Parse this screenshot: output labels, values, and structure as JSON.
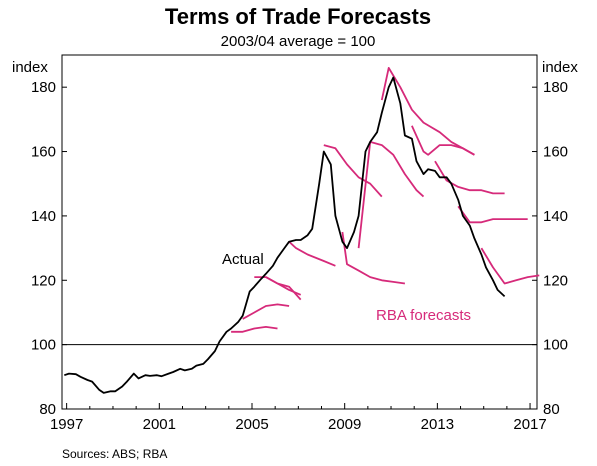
{
  "chart_data": {
    "type": "line",
    "title": "Terms of Trade Forecasts",
    "subtitle": "2003/04 average = 100",
    "y_unit_left": "index",
    "y_unit_right": "index",
    "xlim": [
      1996.8,
      2017.3
    ],
    "ylim": [
      80,
      190
    ],
    "x_ticks": [
      1997,
      2001,
      2005,
      2009,
      2013,
      2017
    ],
    "y_ticks": [
      80,
      100,
      120,
      140,
      160,
      180
    ],
    "reference_line_y": 100,
    "grid": false,
    "source": "Sources:   ABS; RBA",
    "series": [
      {
        "name": "Actual",
        "color": "#000000",
        "x": [
          1996.9,
          1997.1,
          1997.4,
          1997.6,
          1997.9,
          1998.1,
          1998.4,
          1998.6,
          1998.9,
          1999.1,
          1999.4,
          1999.6,
          1999.9,
          2000.1,
          2000.4,
          2000.6,
          2000.9,
          2001.1,
          2001.4,
          2001.6,
          2001.9,
          2002.1,
          2002.4,
          2002.6,
          2002.9,
          2003.1,
          2003.4,
          2003.6,
          2003.9,
          2004.1,
          2004.4,
          2004.6,
          2004.9,
          2005.1,
          2005.4,
          2005.6,
          2005.9,
          2006.1,
          2006.4,
          2006.6,
          2006.9,
          2007.1,
          2007.4,
          2007.6,
          2007.9,
          2008.1,
          2008.4,
          2008.6,
          2008.9,
          2009.1,
          2009.4,
          2009.6,
          2009.9,
          2010.1,
          2010.4,
          2010.6,
          2010.9,
          2011.1,
          2011.4,
          2011.6,
          2011.9,
          2012.1,
          2012.4,
          2012.6,
          2012.9,
          2013.1,
          2013.4,
          2013.6,
          2013.9,
          2014.1,
          2014.4,
          2014.6,
          2014.9,
          2015.1,
          2015.4,
          2015.6,
          2015.9
        ],
        "values": [
          90.5,
          91,
          90.8,
          90,
          89,
          88.5,
          86,
          85,
          85.5,
          85.5,
          87,
          88.5,
          91,
          89.5,
          90.5,
          90.3,
          90.5,
          90.2,
          91,
          91.5,
          92.5,
          92,
          92.5,
          93.5,
          94,
          95.5,
          98,
          101,
          104,
          105,
          107,
          109,
          116.5,
          118,
          120.5,
          122,
          124.5,
          127,
          130,
          132,
          132.5,
          132.5,
          134,
          136,
          150,
          160,
          156,
          140,
          132,
          130,
          135,
          140,
          160,
          163,
          166,
          172,
          180,
          183,
          175,
          165,
          164,
          157,
          153,
          154.5,
          154,
          152,
          152,
          150,
          145,
          140,
          137,
          133,
          128,
          124,
          120,
          117,
          115
        ]
      },
      {
        "name": "RBA forecasts",
        "color": "#d62a7a",
        "segments": [
          {
            "x": [
              2004.1,
              2004.6,
              2005.1,
              2005.6,
              2006.1
            ],
            "values": [
              104,
              104,
              105,
              105.5,
              105
            ]
          },
          {
            "x": [
              2004.6,
              2005.1,
              2005.6,
              2006.1,
              2006.6
            ],
            "values": [
              108,
              110,
              112,
              112.5,
              112
            ]
          },
          {
            "x": [
              2005.1,
              2005.6,
              2006.1,
              2006.6,
              2007.1
            ],
            "values": [
              121,
              121,
              119,
              117,
              115.5
            ]
          },
          {
            "x": [
              2005.6,
              2006.1,
              2006.6,
              2007.1
            ],
            "values": [
              121,
              119,
              118,
              114
            ]
          },
          {
            "x": [
              2006.6,
              2006.9,
              2007.4,
              2008.1,
              2008.6
            ],
            "values": [
              132,
              130,
              128,
              126,
              124.5
            ]
          },
          {
            "x": [
              2008.1,
              2008.6,
              2009.1,
              2009.6,
              2010.1,
              2010.6
            ],
            "values": [
              162,
              161,
              156,
              152,
              150,
              146
            ]
          },
          {
            "x": [
              2008.9,
              2009.1,
              2009.6,
              2010.1,
              2010.6,
              2011.1,
              2011.6
            ],
            "values": [
              135,
              125,
              123,
              121,
              120,
              119.5,
              119
            ]
          },
          {
            "x": [
              2009.6,
              2010.1,
              2010.6,
              2011.1,
              2011.6,
              2012.1,
              2012.4
            ],
            "values": [
              130,
              163,
              162,
              159,
              153,
              148,
              146
            ]
          },
          {
            "x": [
              2010.6,
              2010.9,
              2011.4,
              2011.9,
              2012.4,
              2013.1,
              2013.6,
              2014.1,
              2014.6
            ],
            "values": [
              176,
              186,
              180,
              173,
              169,
              166,
              163,
              161,
              159
            ]
          },
          {
            "x": [
              2011.9,
              2012.4,
              2012.6,
              2013.1,
              2013.6,
              2014.1,
              2014.6
            ],
            "values": [
              168,
              160,
              159,
              162,
              162,
              161,
              159
            ]
          },
          {
            "x": [
              2012.9,
              2013.4,
              2013.9,
              2014.4,
              2014.9,
              2015.4,
              2015.9
            ],
            "values": [
              157,
              151,
              149,
              148,
              148,
              147,
              147
            ]
          },
          {
            "x": [
              2013.9,
              2014.4,
              2014.9,
              2015.4,
              2015.9,
              2016.4,
              2016.9
            ],
            "values": [
              143,
              138,
              138,
              139,
              139,
              139,
              139
            ]
          },
          {
            "x": [
              2014.9,
              2015.4,
              2015.9,
              2016.4,
              2016.9,
              2017.4
            ],
            "values": [
              130,
              124,
              119,
              120,
              121,
              121.5
            ]
          }
        ]
      }
    ],
    "annotations": [
      {
        "text": "Actual",
        "series": "Actual"
      },
      {
        "text": "RBA forecasts",
        "series": "RBA forecasts"
      }
    ]
  }
}
